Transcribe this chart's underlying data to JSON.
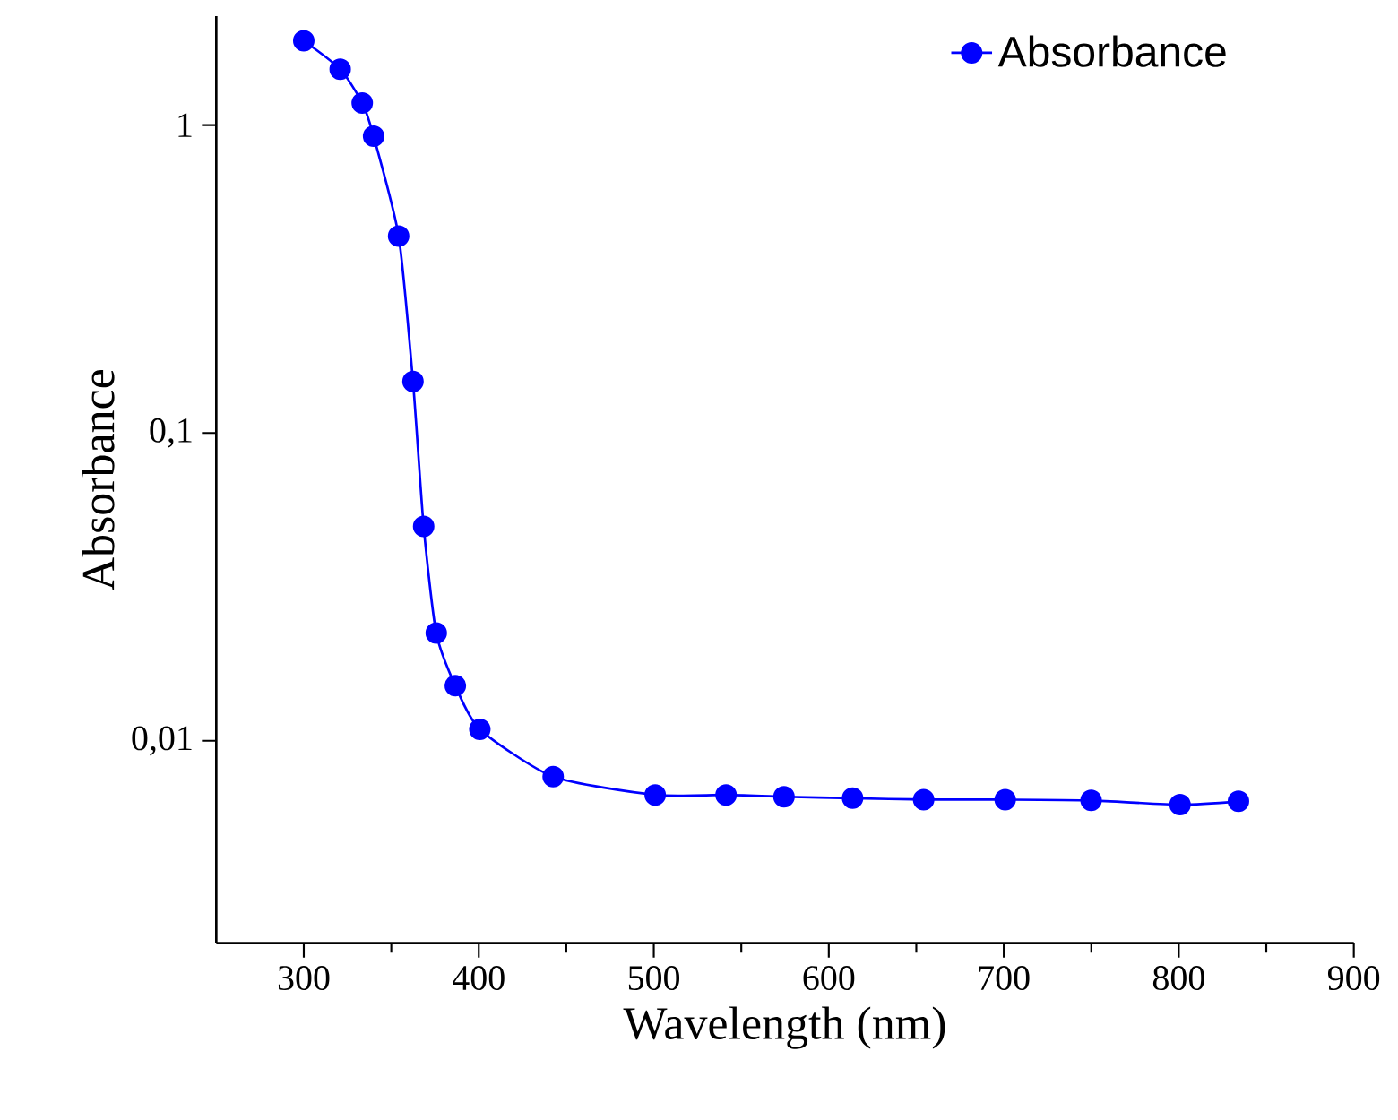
{
  "chart_data": {
    "type": "line",
    "xlabel": "Wavelength (nm)",
    "ylabel": "Absorbance",
    "x": [
      300,
      320.8,
      333.4,
      339.9,
      354.2,
      362.4,
      368.5,
      375.7,
      386.6,
      400.6,
      442.5,
      500.8,
      541.3,
      574.4,
      613.6,
      654.2,
      700.8,
      749.9,
      800.7,
      834.1
    ],
    "series": [
      {
        "name": "Absorbance",
        "color": "#0000ff",
        "values": [
          1.88,
          1.52,
          1.18,
          0.92,
          0.436,
          0.147,
          0.0497,
          0.0224,
          0.0151,
          0.0109,
          0.00765,
          0.00667,
          0.00667,
          0.00658,
          0.00651,
          0.00644,
          0.00644,
          0.0064,
          0.0062,
          0.00636
        ]
      }
    ],
    "xlim": [
      250,
      900
    ],
    "ylim": [
      0.0022,
      2.26
    ],
    "xticks": [
      300,
      400,
      500,
      600,
      700,
      800,
      900
    ],
    "yticks": [
      {
        "value": 0.01,
        "label": "0,01"
      },
      {
        "value": 0.1,
        "label": "0,1"
      },
      {
        "value": 1,
        "label": "1"
      }
    ],
    "log": "y",
    "grid": false,
    "legend": "top right",
    "marker": "circle",
    "line_style": "solid"
  }
}
